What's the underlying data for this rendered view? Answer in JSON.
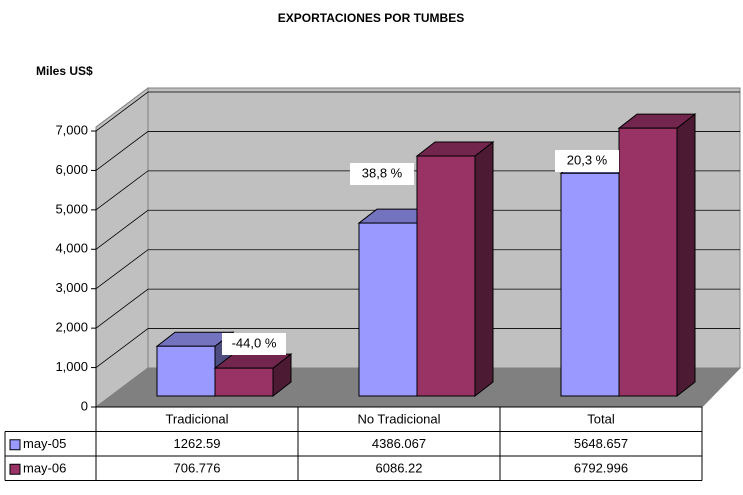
{
  "chart_data": {
    "type": "bar3d",
    "title": "EXPORTACIONES POR TUMBES",
    "y_label": "Miles US$",
    "categories": [
      "Tradicional",
      "No Tradicional",
      "Total"
    ],
    "series": [
      {
        "name": "may-05",
        "color": "#9999ff",
        "values": [
          1262.59,
          4386.067,
          5648.657
        ]
      },
      {
        "name": "may-06",
        "color": "#993366",
        "values": [
          706.776,
          6086.22,
          6792.996
        ]
      }
    ],
    "annotations": [
      "-44,0 %",
      "38,8 %",
      "20,3 %"
    ],
    "ylim": [
      0,
      7000
    ],
    "yticks": [
      0,
      {
        "value": 1000,
        "label": "1,000"
      },
      {
        "value": 2000,
        "label": "2,000"
      },
      {
        "value": 3000,
        "label": "3,000"
      },
      {
        "value": 4000,
        "label": "4,000"
      },
      {
        "value": 5000,
        "label": "5,000"
      },
      {
        "value": 6000,
        "label": "6,000"
      },
      {
        "value": 7000,
        "label": "7,000"
      }
    ],
    "grid": true,
    "data_table": true
  }
}
